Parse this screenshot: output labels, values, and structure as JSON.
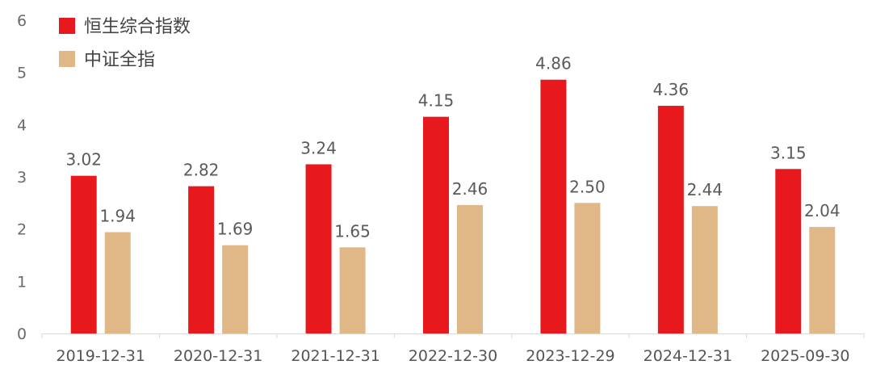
{
  "chart_data": {
    "type": "bar",
    "categories": [
      "2019-12-31",
      "2020-12-31",
      "2021-12-31",
      "2022-12-30",
      "2023-12-29",
      "2024-12-31",
      "2025-09-30"
    ],
    "series": [
      {
        "name": "恒生综合指数",
        "color": "#e8191d",
        "values": [
          3.02,
          2.82,
          3.24,
          4.15,
          4.86,
          4.36,
          3.15
        ],
        "labels": [
          "3.02",
          "2.82",
          "3.24",
          "4.15",
          "4.86",
          "4.36",
          "3.15"
        ]
      },
      {
        "name": "中证全指",
        "color": "#e0b887",
        "values": [
          1.94,
          1.69,
          1.65,
          2.46,
          2.5,
          2.44,
          2.04
        ],
        "labels": [
          "1.94",
          "1.69",
          "1.65",
          "2.46",
          "2.50",
          "2.44",
          "2.04"
        ]
      }
    ],
    "yticks": [
      "0",
      "1",
      "2",
      "3",
      "4",
      "5",
      "6"
    ],
    "ylim": [
      0,
      6
    ],
    "grid": false,
    "legend_position": "top-left"
  }
}
